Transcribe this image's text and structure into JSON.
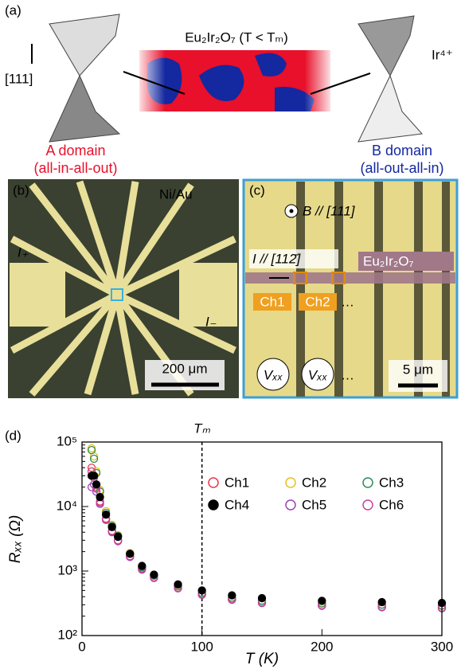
{
  "panels": {
    "a": {
      "label": "(a)",
      "material": "Eu₂Ir₂O₇ (T < Tₘ)",
      "direction": "[111]",
      "ion": "Ir⁴⁺",
      "domain_a": "A domain",
      "domain_a_note": "(all-in-all-out)",
      "domain_b": "B domain",
      "domain_b_note": "(all-out-all-in)"
    },
    "b": {
      "label": "(b)",
      "metal": "Ni/Au",
      "current_in": "I₊",
      "current_out": "I₋",
      "scale": "200 μm"
    },
    "c": {
      "label": "(c)",
      "field": "B // [111]",
      "current": "I // [112̄]",
      "material": "Eu₂Ir₂O₇",
      "channels": [
        "Ch1",
        "Ch2"
      ],
      "ellipsis": "…",
      "voltage": "Vₓₓ",
      "scale": "5 μm"
    }
  },
  "chart_data": {
    "type": "scatter",
    "panel_label": "(d)",
    "x_label": "T (K)",
    "y_label": "Rₓₓ (Ω)",
    "log_y": true,
    "annotation": "Tₘ",
    "annotation_x": 100,
    "xlim": [
      0,
      300
    ],
    "xticks": [
      0,
      100,
      200,
      300
    ],
    "ylim": [
      100,
      100000
    ],
    "yticks": [
      {
        "value": 100,
        "label": "10²"
      },
      {
        "value": 1000,
        "label": "10³"
      },
      {
        "value": 10000,
        "label": "10⁴"
      },
      {
        "value": 100000,
        "label": "10⁵"
      }
    ],
    "x": [
      8,
      10,
      12,
      15,
      20,
      25,
      30,
      40,
      50,
      60,
      80,
      100,
      125,
      150,
      200,
      250,
      300
    ],
    "series": [
      {
        "name": "Ch1",
        "color": "#e8384f",
        "filled": false,
        "values": [
          40000,
          30000,
          20000,
          12000,
          6500,
          4200,
          3000,
          1700,
          1100,
          800,
          550,
          430,
          360,
          320,
          290,
          275,
          265
        ]
      },
      {
        "name": "Ch2",
        "color": "#e6c020",
        "filled": false,
        "values": [
          80000,
          60000,
          35000,
          18000,
          8500,
          5200,
          3600,
          1900,
          1200,
          860,
          590,
          460,
          390,
          350,
          320,
          305,
          295
        ]
      },
      {
        "name": "Ch3",
        "color": "#2e8b57",
        "filled": false,
        "values": [
          75000,
          55000,
          33000,
          17000,
          8000,
          5000,
          3500,
          1850,
          1150,
          850,
          580,
          455,
          385,
          345,
          315,
          300,
          290
        ]
      },
      {
        "name": "Ch4",
        "color": "#000000",
        "filled": true,
        "values": [
          30000,
          30000,
          22000,
          14000,
          7500,
          4800,
          3400,
          1850,
          1200,
          880,
          620,
          500,
          420,
          380,
          345,
          330,
          320
        ]
      },
      {
        "name": "Ch5",
        "color": "#9b3fb5",
        "filled": false,
        "values": [
          20000,
          22000,
          17000,
          11000,
          6200,
          4000,
          2900,
          1650,
          1050,
          780,
          540,
          430,
          360,
          320,
          290,
          275,
          265
        ]
      },
      {
        "name": "Ch6",
        "color": "#c8409a",
        "filled": false,
        "values": [
          35000,
          28000,
          19000,
          11500,
          6300,
          4100,
          2950,
          1680,
          1080,
          790,
          545,
          435,
          365,
          325,
          295,
          280,
          270
        ]
      }
    ]
  }
}
